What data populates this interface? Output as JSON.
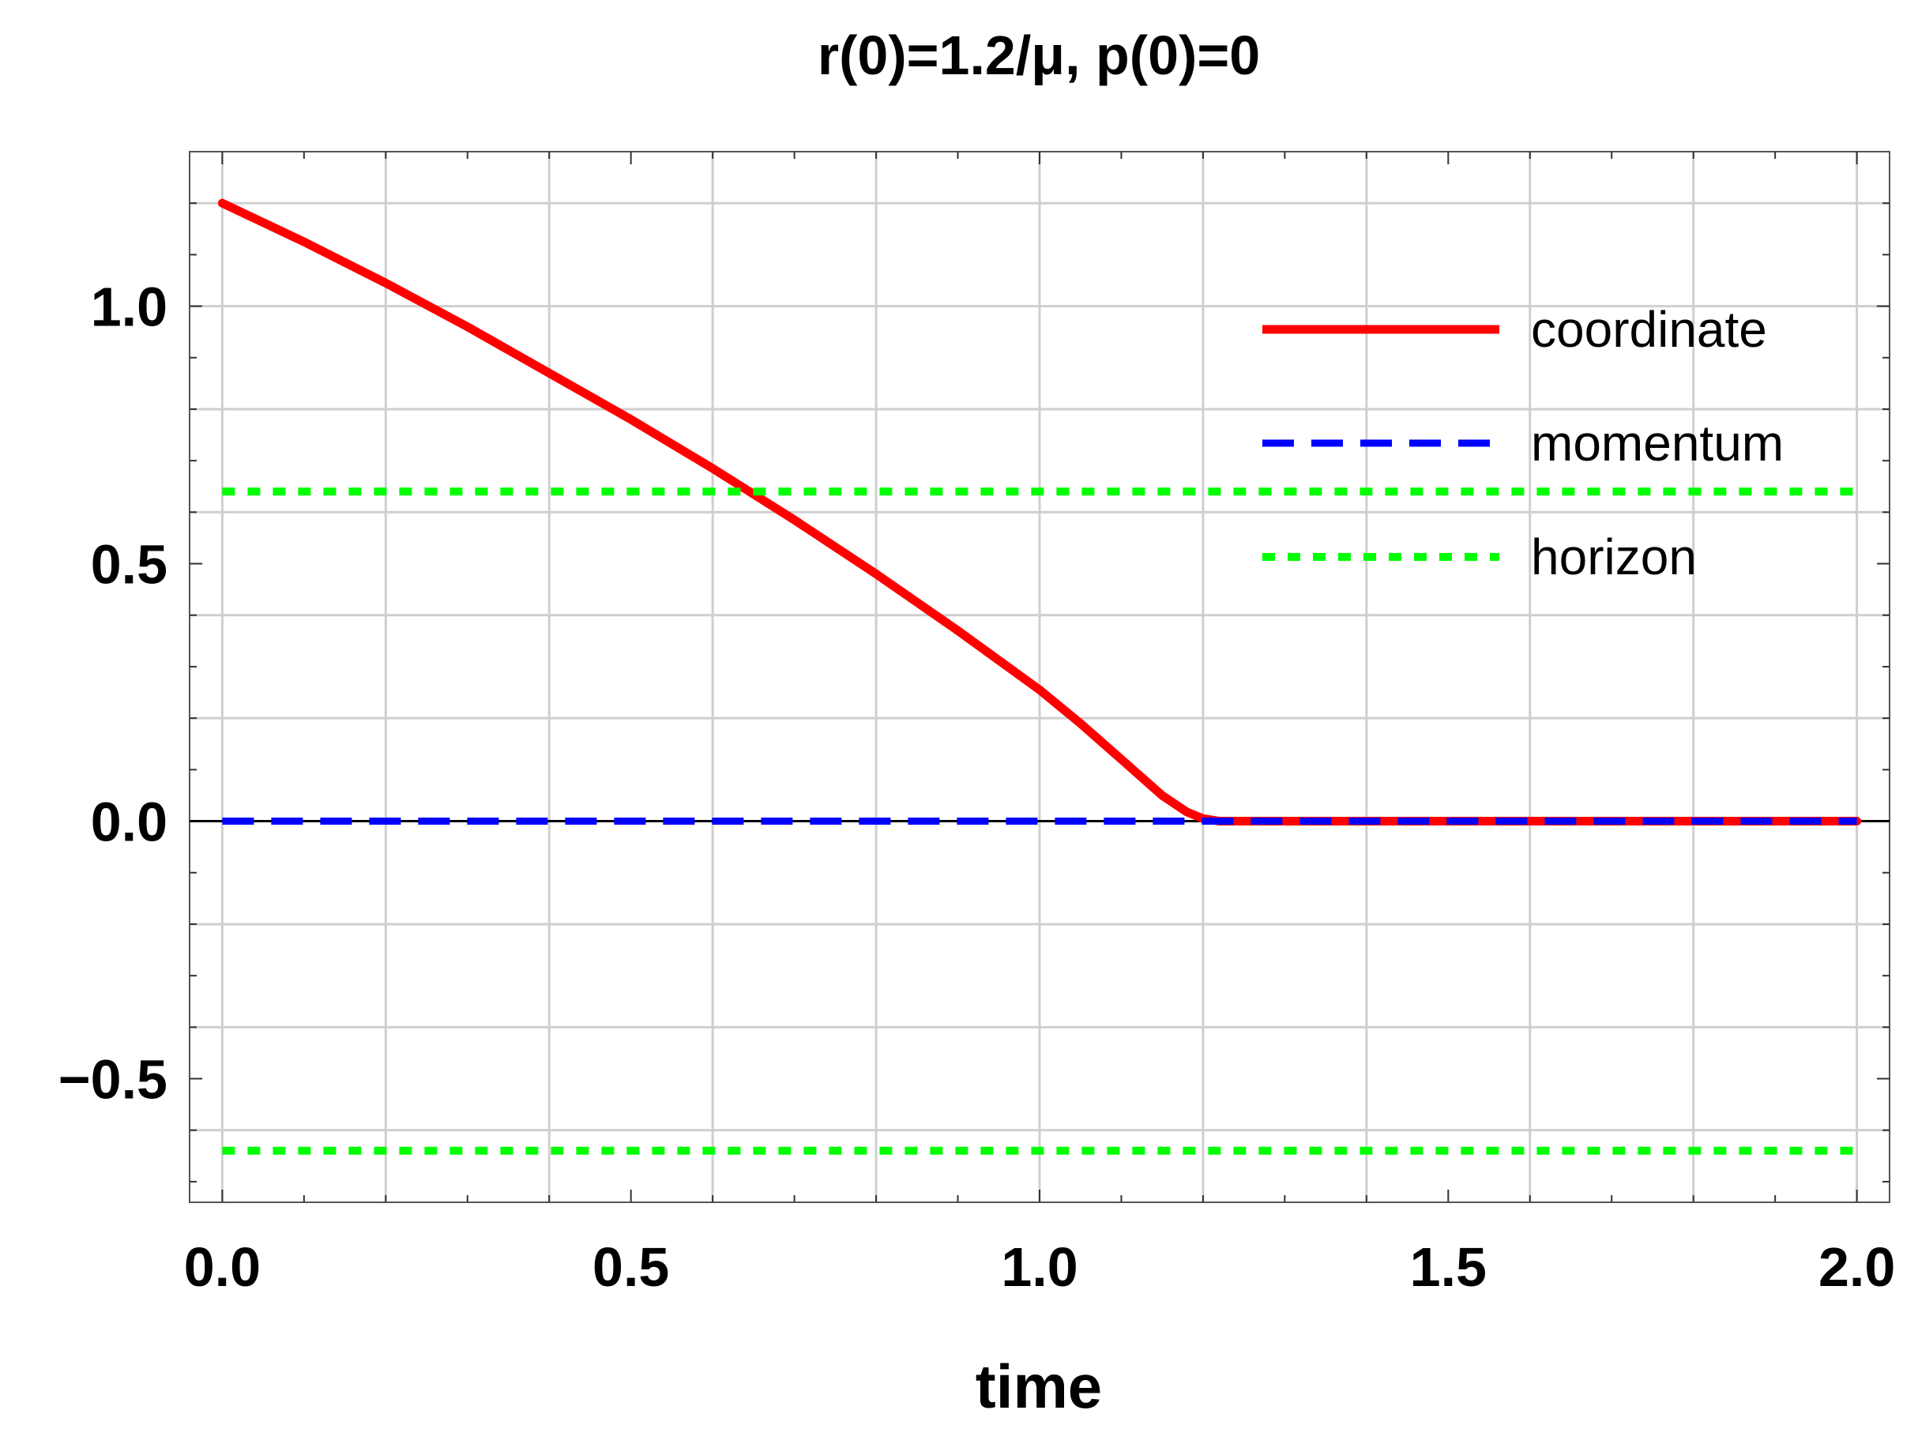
{
  "chart_data": {
    "type": "line",
    "title": "r(0)=1.2/μ, p(0)=0",
    "xlabel": "time",
    "ylabel": "",
    "xlim": [
      -0.04,
      2.04
    ],
    "ylim": [
      -0.74,
      1.3
    ],
    "x_ticks": [
      0.0,
      0.5,
      1.0,
      1.5,
      2.0
    ],
    "x_tick_labels": [
      "0.0",
      "0.5",
      "1.0",
      "1.5",
      "2.0"
    ],
    "y_ticks": [
      -0.5,
      0.0,
      0.5,
      1.0
    ],
    "y_tick_labels": [
      "−0.5",
      "0.0",
      "0.5",
      "1.0"
    ],
    "grid": true,
    "legend_position": "top-right",
    "series": [
      {
        "name": "coordinate",
        "color": "#ff0000",
        "style": "solid",
        "x": [
          0.0,
          0.1,
          0.2,
          0.3,
          0.4,
          0.5,
          0.6,
          0.7,
          0.8,
          0.9,
          1.0,
          1.05,
          1.1,
          1.15,
          1.18,
          1.2,
          1.22,
          1.3,
          1.5,
          1.75,
          2.0
        ],
        "y": [
          1.2,
          1.125,
          1.045,
          0.96,
          0.87,
          0.78,
          0.685,
          0.585,
          0.48,
          0.37,
          0.255,
          0.19,
          0.12,
          0.05,
          0.018,
          0.005,
          0.0,
          0.0,
          0.0,
          0.0,
          0.0
        ]
      },
      {
        "name": "momentum",
        "color": "#0000ff",
        "style": "dashed",
        "x": [
          0.0,
          2.0
        ],
        "y": [
          0.0,
          0.0
        ]
      },
      {
        "name": "horizon",
        "color": "#00ff00",
        "style": "dotted",
        "x": [
          0.0,
          2.0
        ],
        "y": [
          0.64,
          0.64
        ]
      },
      {
        "name": "",
        "color": "#00ff00",
        "style": "dotted",
        "x": [
          0.0,
          2.0
        ],
        "y": [
          -0.64,
          -0.64
        ]
      }
    ]
  }
}
